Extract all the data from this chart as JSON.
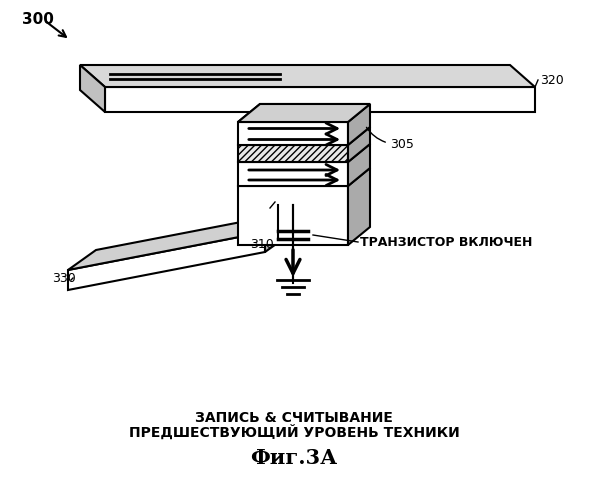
{
  "title": "Фиг.3А",
  "label_300": "300",
  "label_305": "305",
  "label_310": "310",
  "label_320": "320",
  "label_330": "330",
  "text_line1": "ЗАПИСЬ & СЧИТЫВАНИЕ",
  "text_line2": "ПРЕДШЕСТВУЮЩИЙ УРОВЕНЬ ТЕХНИКИ",
  "text_transistor": "ТРАНЗИСТОР ВКЛЮЧЕН",
  "bg_color": "#ffffff",
  "line_color": "#000000"
}
